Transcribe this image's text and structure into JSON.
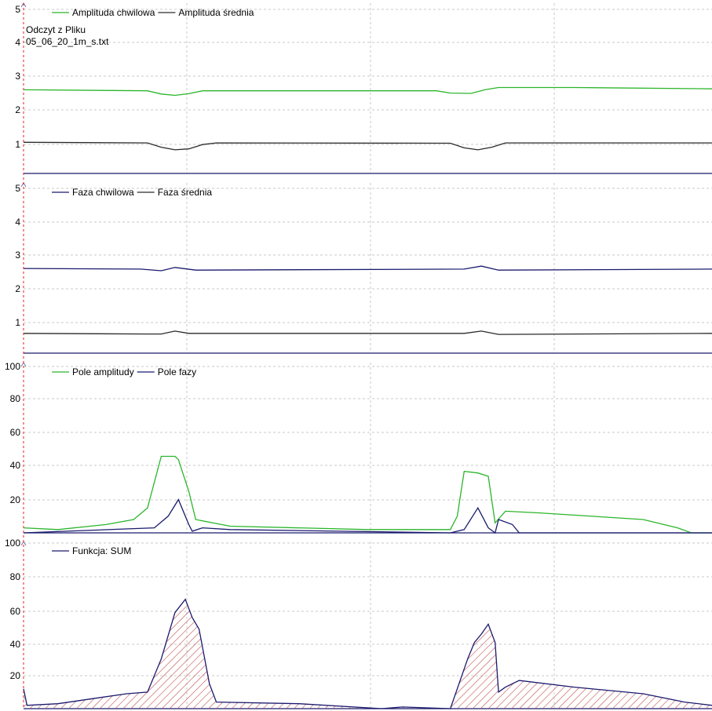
{
  "colors": {
    "green": "#2bb52b",
    "navy": "#1a1a6e",
    "dark": "#2a2a2a",
    "grid": "#c8c8c8",
    "cursor": "#e0201f",
    "hatch": "#c05050"
  },
  "file": {
    "source_label": "Odczyt z Pliku",
    "filename": "05_06_20_1m_s.txt"
  },
  "chart_data": [
    {
      "type": "line",
      "ylim": [
        0,
        5
      ],
      "yticks": [
        "1",
        "2",
        "3",
        "4",
        "5"
      ],
      "series": [
        {
          "name": "Amplituda chwilowa",
          "color": "#2bb52b",
          "points": [
            [
              0,
              2.55
            ],
            [
              0.18,
              2.52
            ],
            [
              0.2,
              2.42
            ],
            [
              0.22,
              2.38
            ],
            [
              0.24,
              2.43
            ],
            [
              0.26,
              2.52
            ],
            [
              0.6,
              2.52
            ],
            [
              0.62,
              2.45
            ],
            [
              0.65,
              2.44
            ],
            [
              0.67,
              2.55
            ],
            [
              0.69,
              2.62
            ],
            [
              0.8,
              2.62
            ],
            [
              1,
              2.58
            ]
          ]
        },
        {
          "name": "Amplituda średnia",
          "color": "#2a2a2a",
          "points": [
            [
              0,
              0.95
            ],
            [
              0.18,
              0.93
            ],
            [
              0.2,
              0.8
            ],
            [
              0.22,
              0.72
            ],
            [
              0.24,
              0.75
            ],
            [
              0.26,
              0.88
            ],
            [
              0.28,
              0.93
            ],
            [
              0.62,
              0.92
            ],
            [
              0.64,
              0.78
            ],
            [
              0.66,
              0.72
            ],
            [
              0.68,
              0.8
            ],
            [
              0.7,
              0.93
            ],
            [
              1,
              0.93
            ]
          ]
        }
      ]
    },
    {
      "type": "line",
      "ylim": [
        0,
        5
      ],
      "yticks": [
        "1",
        "2",
        "3",
        "4",
        "5"
      ],
      "series": [
        {
          "name": "Faza chwilowa",
          "color": "#1a1a6e",
          "points": [
            [
              0,
              2.57
            ],
            [
              0.17,
              2.55
            ],
            [
              0.2,
              2.5
            ],
            [
              0.22,
              2.6
            ],
            [
              0.25,
              2.52
            ],
            [
              0.64,
              2.55
            ],
            [
              0.665,
              2.64
            ],
            [
              0.69,
              2.52
            ],
            [
              1,
              2.55
            ]
          ]
        },
        {
          "name": "Faza średnia",
          "color": "#2a2a2a",
          "points": [
            [
              0,
              0.6
            ],
            [
              0.18,
              0.58
            ],
            [
              0.2,
              0.58
            ],
            [
              0.22,
              0.67
            ],
            [
              0.24,
              0.6
            ],
            [
              0.64,
              0.6
            ],
            [
              0.665,
              0.67
            ],
            [
              0.69,
              0.57
            ],
            [
              1,
              0.6
            ]
          ]
        }
      ]
    },
    {
      "type": "line",
      "ylim": [
        0,
        100
      ],
      "yticks": [
        "20",
        "40",
        "60",
        "80",
        "100"
      ],
      "series": [
        {
          "name": "Pole amplitudy",
          "color": "#2bb52b",
          "points": [
            [
              0,
              3
            ],
            [
              0.05,
              2
            ],
            [
              0.12,
              5
            ],
            [
              0.16,
              8
            ],
            [
              0.18,
              15
            ],
            [
              0.2,
              46
            ],
            [
              0.22,
              46
            ],
            [
              0.225,
              44
            ],
            [
              0.24,
              25
            ],
            [
              0.25,
              8
            ],
            [
              0.3,
              4
            ],
            [
              0.5,
              2
            ],
            [
              0.62,
              2
            ],
            [
              0.63,
              10
            ],
            [
              0.64,
              37
            ],
            [
              0.66,
              36
            ],
            [
              0.675,
              34
            ],
            [
              0.685,
              6
            ],
            [
              0.7,
              13
            ],
            [
              0.75,
              12
            ],
            [
              0.9,
              8
            ],
            [
              0.95,
              3
            ],
            [
              0.97,
              0
            ],
            [
              1,
              0
            ]
          ]
        },
        {
          "name": "Pole fazy",
          "color": "#1a1a6e",
          "points": [
            [
              0,
              0
            ],
            [
              0.19,
              3
            ],
            [
              0.21,
              10
            ],
            [
              0.225,
              20
            ],
            [
              0.24,
              5
            ],
            [
              0.245,
              1
            ],
            [
              0.26,
              3
            ],
            [
              0.3,
              2
            ],
            [
              0.62,
              0
            ],
            [
              0.64,
              2
            ],
            [
              0.66,
              15
            ],
            [
              0.675,
              3
            ],
            [
              0.685,
              0
            ],
            [
              0.69,
              8
            ],
            [
              0.71,
              5
            ],
            [
              0.72,
              0
            ],
            [
              1,
              0
            ]
          ]
        }
      ]
    },
    {
      "type": "area",
      "ylim": [
        0,
        100
      ],
      "yticks": [
        "20",
        "40",
        "60",
        "80",
        "100"
      ],
      "series": [
        {
          "name": "Funkcja: SUM",
          "color": "#1a1a6e",
          "points": [
            [
              0,
              12
            ],
            [
              0.005,
              2
            ],
            [
              0.05,
              3
            ],
            [
              0.1,
              6
            ],
            [
              0.15,
              9
            ],
            [
              0.18,
              10
            ],
            [
              0.2,
              30
            ],
            [
              0.22,
              58
            ],
            [
              0.235,
              66
            ],
            [
              0.245,
              55
            ],
            [
              0.255,
              48
            ],
            [
              0.27,
              15
            ],
            [
              0.28,
              4
            ],
            [
              0.4,
              3
            ],
            [
              0.52,
              0
            ],
            [
              0.55,
              1
            ],
            [
              0.62,
              0
            ],
            [
              0.645,
              30
            ],
            [
              0.655,
              40
            ],
            [
              0.665,
              45
            ],
            [
              0.675,
              51
            ],
            [
              0.685,
              40
            ],
            [
              0.69,
              10
            ],
            [
              0.7,
              13
            ],
            [
              0.72,
              17
            ],
            [
              0.8,
              13
            ],
            [
              0.9,
              9
            ],
            [
              0.96,
              4
            ],
            [
              1,
              2
            ]
          ]
        }
      ]
    }
  ]
}
